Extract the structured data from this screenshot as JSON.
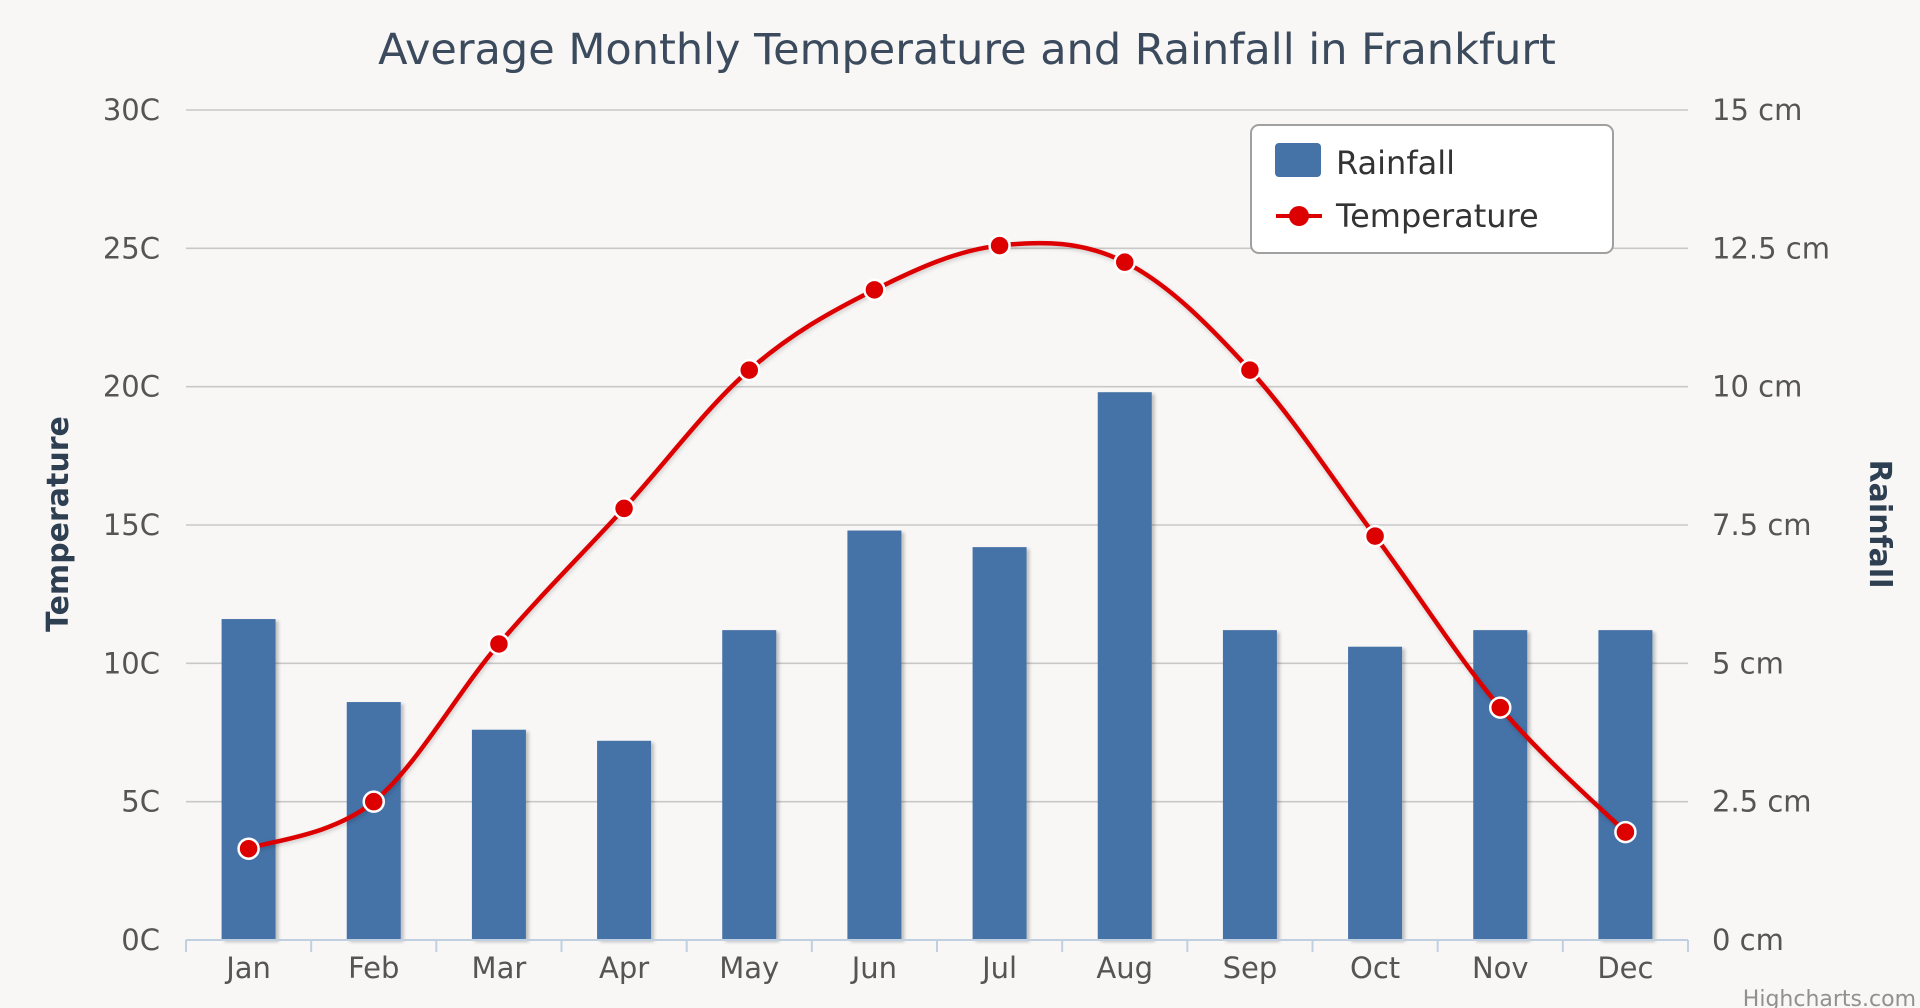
{
  "chart_data": {
    "type": "bar",
    "title": "Average Monthly Temperature and Rainfall in Frankfurt",
    "categories": [
      "Jan",
      "Feb",
      "Mar",
      "Apr",
      "May",
      "Jun",
      "Jul",
      "Aug",
      "Sep",
      "Oct",
      "Nov",
      "Dec"
    ],
    "series": [
      {
        "name": "Rainfall",
        "type": "bar",
        "axis": "right",
        "unit": "cm",
        "color": "#4572a7",
        "values": [
          5.8,
          4.3,
          3.8,
          3.6,
          5.6,
          7.4,
          7.1,
          9.9,
          5.6,
          5.3,
          5.6,
          5.6
        ]
      },
      {
        "name": "Temperature",
        "type": "line",
        "axis": "left",
        "unit": "C",
        "color": "#dd0000",
        "values": [
          3.3,
          5.0,
          10.7,
          15.6,
          20.6,
          23.5,
          25.1,
          24.5,
          20.6,
          14.6,
          8.4,
          3.9
        ]
      }
    ],
    "y_left": {
      "label": "Temperature",
      "ticks": [
        "0C",
        "5C",
        "10C",
        "15C",
        "20C",
        "25C",
        "30C"
      ],
      "range": [
        0,
        30
      ]
    },
    "y_right": {
      "label": "Rainfall",
      "ticks": [
        "0 cm",
        "2.5 cm",
        "5 cm",
        "7.5 cm",
        "10 cm",
        "12.5 cm",
        "15 cm"
      ],
      "range": [
        0,
        15
      ]
    },
    "legend": {
      "position": "top-right",
      "items": [
        "Rainfall",
        "Temperature"
      ]
    },
    "grid": true,
    "credit": "Highcharts.com"
  }
}
